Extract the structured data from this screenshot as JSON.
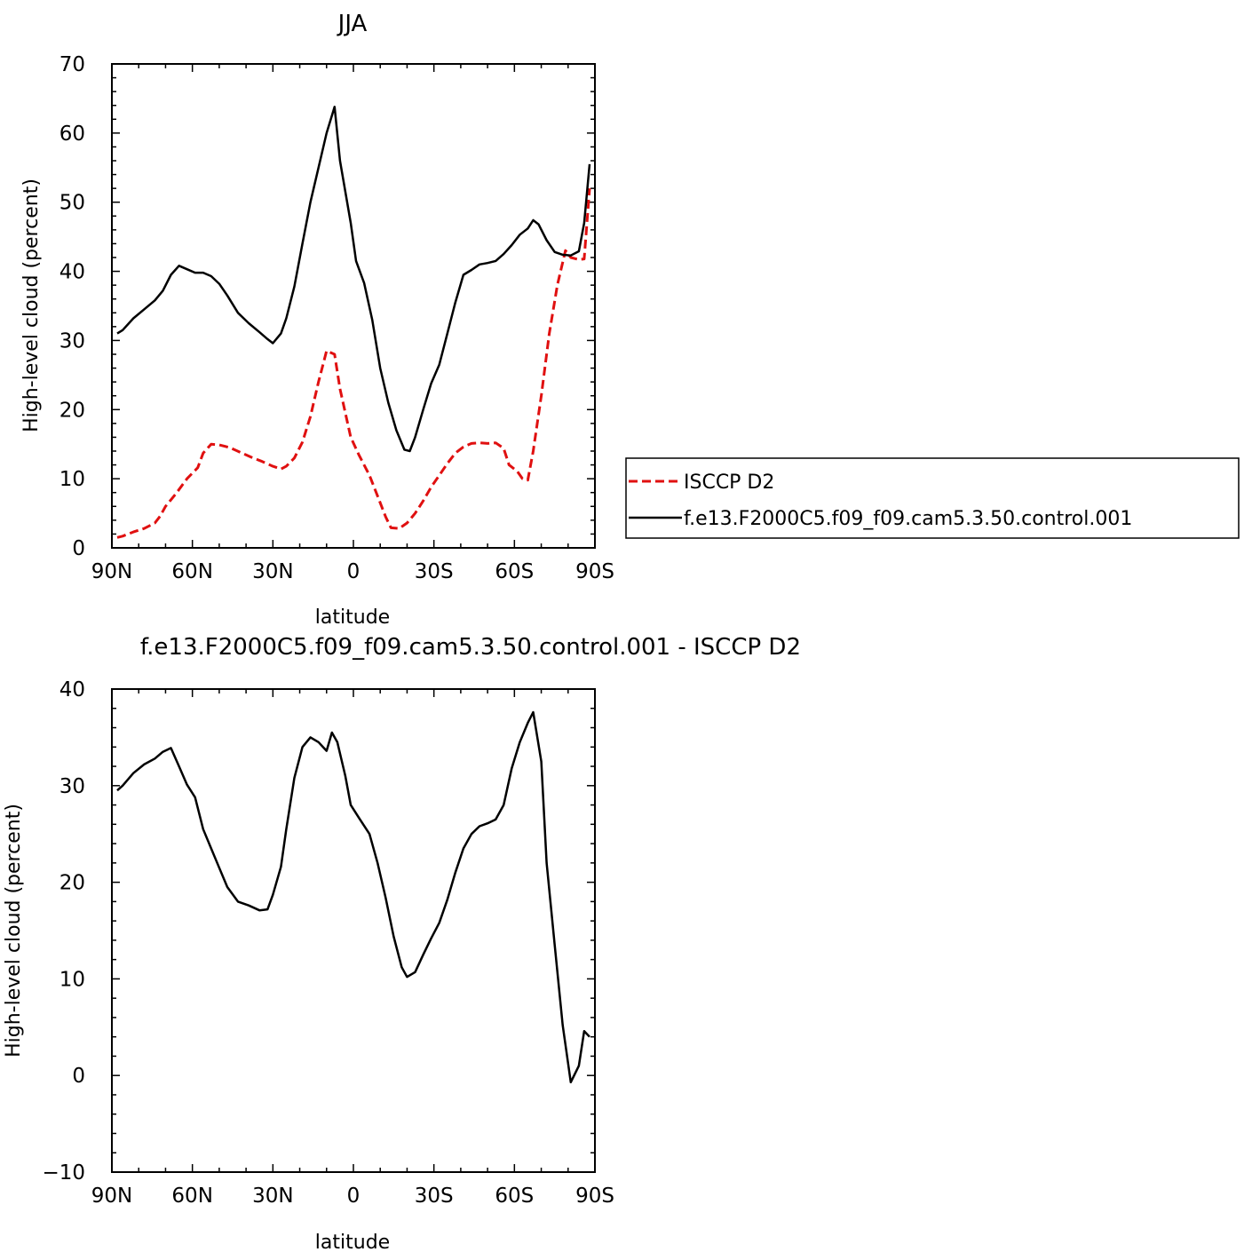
{
  "chart_data": [
    {
      "type": "line",
      "title": "JJA",
      "xlabel": "latitude",
      "ylabel": "High-level cloud (percent)",
      "xlim": [
        -90,
        90
      ],
      "ylim": [
        0,
        70
      ],
      "x_ticks": [
        -90,
        -60,
        -30,
        0,
        30,
        60,
        90
      ],
      "x_tick_labels": [
        "90N",
        "60N",
        "30N",
        "0",
        "30S",
        "60S",
        "90S"
      ],
      "y_ticks": [
        0,
        10,
        20,
        30,
        40,
        50,
        60,
        70
      ],
      "y_tick_labels": [
        "0",
        "10",
        "20",
        "30",
        "40",
        "50",
        "60",
        "70"
      ],
      "legend": {
        "position": "right",
        "entries": [
          "ISCCP D2",
          "f.e13.F2000C5.f09_f09.cam5.3.50.control.001"
        ]
      },
      "series": [
        {
          "name": "ISCCP D2",
          "color": "#e01010",
          "dash": "dashed",
          "x": [
            -88,
            -86,
            -82,
            -78,
            -74,
            -72,
            -70,
            -66,
            -62,
            -58,
            -56,
            -53,
            -50,
            -46,
            -42,
            -38,
            -34,
            -30,
            -27,
            -25,
            -22,
            -19,
            -16,
            -13,
            -10,
            -7,
            -5,
            -1,
            2,
            6,
            9,
            12,
            14,
            17,
            20,
            23,
            26,
            29,
            32,
            35,
            38,
            41,
            44,
            47,
            50,
            53,
            56,
            58,
            61,
            63,
            65,
            67,
            70,
            73,
            76,
            79,
            81,
            84,
            86,
            88
          ],
          "y": [
            1.5,
            1.7,
            2.3,
            2.8,
            3.6,
            4.6,
            6.0,
            7.9,
            10.0,
            11.6,
            13.7,
            15.0,
            14.9,
            14.5,
            13.8,
            13.1,
            12.5,
            11.8,
            11.4,
            11.8,
            13.0,
            15.3,
            19.0,
            24.0,
            28.5,
            28.0,
            23.0,
            16.0,
            13.5,
            10.5,
            7.5,
            4.5,
            2.9,
            2.8,
            3.6,
            5.0,
            6.8,
            8.8,
            10.5,
            12.2,
            13.7,
            14.6,
            15.1,
            15.2,
            15.1,
            15.2,
            14.4,
            12.0,
            11.1,
            10.0,
            9.8,
            14.0,
            22.0,
            31.0,
            38.0,
            43.0,
            42.0,
            41.7,
            41.8,
            52.0
          ]
        },
        {
          "name": "f.e13.F2000C5.f09_f09.cam5.3.50.control.001",
          "color": "#000000",
          "dash": "solid",
          "x": [
            -88,
            -86,
            -82,
            -78,
            -74,
            -71,
            -68,
            -65,
            -62,
            -59,
            -56,
            -53,
            -50,
            -47,
            -43,
            -39,
            -35,
            -32,
            -30,
            -27,
            -25,
            -22,
            -19,
            -16,
            -13,
            -10,
            -7,
            -5,
            -1,
            1,
            4,
            7,
            10,
            13,
            16,
            19,
            21,
            23,
            26,
            29,
            32,
            35,
            38,
            41,
            44,
            47,
            50,
            53,
            56,
            59,
            62,
            65,
            67,
            69,
            72,
            75,
            78,
            81,
            84,
            86,
            88
          ],
          "y": [
            31.0,
            31.5,
            33.2,
            34.5,
            35.8,
            37.2,
            39.5,
            40.8,
            40.3,
            39.8,
            39.8,
            39.3,
            38.2,
            36.5,
            34.0,
            32.5,
            31.2,
            30.2,
            29.6,
            31.0,
            33.2,
            37.8,
            44.0,
            50.0,
            55.0,
            60.0,
            63.8,
            56.0,
            47.0,
            41.5,
            38.3,
            33.0,
            26.0,
            21.0,
            17.0,
            14.2,
            14.0,
            16.0,
            20.0,
            23.8,
            26.5,
            31.0,
            35.5,
            39.5,
            40.2,
            41.0,
            41.2,
            41.5,
            42.5,
            43.8,
            45.3,
            46.2,
            47.4,
            46.8,
            44.5,
            42.8,
            42.4,
            42.3,
            42.9,
            47.0,
            55.5
          ]
        }
      ]
    },
    {
      "type": "line",
      "title": "f.e13.F2000C5.f09_f09.cam5.3.50.control.001 - ISCCP D2",
      "xlabel": "latitude",
      "ylabel": "High-level cloud (percent)",
      "xlim": [
        -90,
        90
      ],
      "ylim": [
        -10,
        40
      ],
      "x_ticks": [
        -90,
        -60,
        -30,
        0,
        30,
        60,
        90
      ],
      "x_tick_labels": [
        "90N",
        "60N",
        "30N",
        "0",
        "30S",
        "60S",
        "90S"
      ],
      "y_ticks": [
        -10,
        0,
        10,
        20,
        30,
        40
      ],
      "y_tick_labels": [
        "−10",
        "0",
        "10",
        "20",
        "30",
        "40"
      ],
      "series": [
        {
          "color": "#000000",
          "dash": "solid",
          "x": [
            -88,
            -86,
            -82,
            -78,
            -74,
            -71,
            -68,
            -65,
            -62,
            -59,
            -56,
            -53,
            -50,
            -47,
            -43,
            -39,
            -35,
            -32,
            -30,
            -27,
            -25,
            -22,
            -19,
            -16,
            -13,
            -10,
            -8,
            -6,
            -3,
            -1,
            2,
            6,
            9,
            12,
            15,
            18,
            20,
            23,
            26,
            29,
            32,
            35,
            38,
            41,
            44,
            47,
            50,
            53,
            56,
            59,
            62,
            65,
            67,
            70,
            72,
            75,
            78,
            81,
            84,
            86,
            88
          ],
          "y": [
            29.5,
            30.0,
            31.3,
            32.2,
            32.8,
            33.5,
            33.9,
            32.0,
            30.1,
            28.8,
            25.5,
            23.5,
            21.5,
            19.5,
            18.0,
            17.6,
            17.1,
            17.2,
            18.7,
            21.6,
            25.5,
            30.8,
            34.0,
            35.0,
            34.5,
            33.6,
            35.5,
            34.5,
            31.0,
            28.0,
            26.7,
            25.0,
            22.0,
            18.4,
            14.4,
            11.2,
            10.2,
            10.7,
            12.5,
            14.2,
            15.8,
            18.2,
            21.0,
            23.5,
            25.0,
            25.8,
            26.1,
            26.5,
            28.0,
            31.8,
            34.5,
            36.5,
            37.6,
            32.5,
            22.0,
            13.5,
            5.2,
            -0.7,
            1.0,
            4.6,
            4.0
          ]
        }
      ]
    }
  ]
}
